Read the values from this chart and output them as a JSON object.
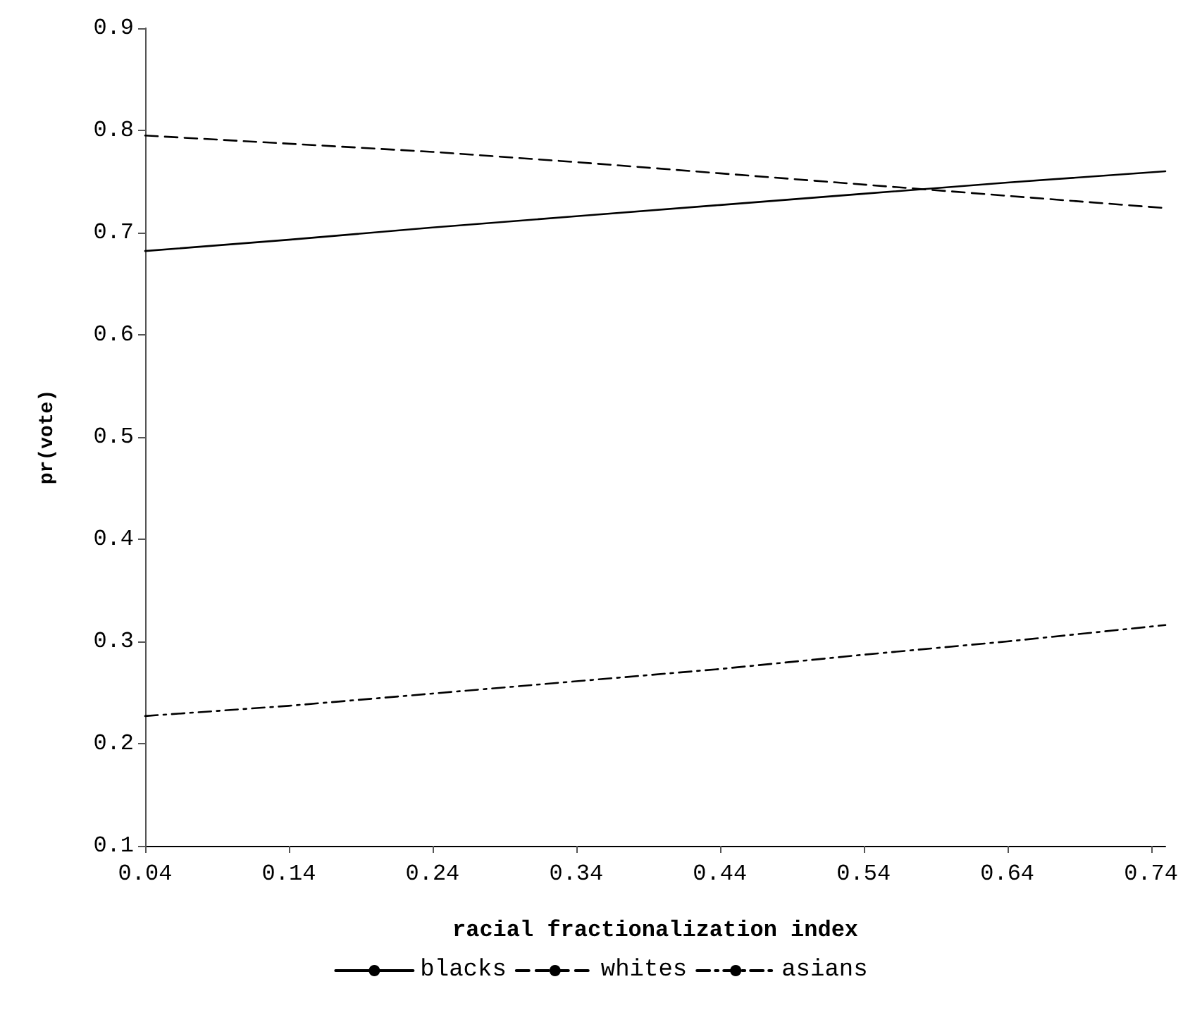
{
  "chart_data": {
    "type": "line",
    "xlabel": "racial fractionalization index",
    "ylabel": "pr(vote)",
    "x": [
      0.04,
      0.14,
      0.24,
      0.34,
      0.44,
      0.54,
      0.64,
      0.75
    ],
    "series": [
      {
        "name": "blacks",
        "color": "#000000",
        "line_style": "solid",
        "values": [
          0.682,
          0.693,
          0.705,
          0.716,
          0.727,
          0.738,
          0.749,
          0.76
        ]
      },
      {
        "name": "whites",
        "color": "#000000",
        "line_style": "dashed",
        "values": [
          0.795,
          0.787,
          0.779,
          0.769,
          0.758,
          0.747,
          0.736,
          0.724
        ]
      },
      {
        "name": "asians",
        "color": "#000000",
        "line_style": "dotted",
        "values": [
          0.227,
          0.237,
          0.249,
          0.261,
          0.273,
          0.287,
          0.3,
          0.316
        ]
      }
    ],
    "xlim": [
      0.04,
      0.75
    ],
    "xticks": [
      0.04,
      0.14,
      0.24,
      0.34,
      0.44,
      0.54,
      0.64,
      0.74
    ],
    "ylim": [
      0.1,
      0.9
    ],
    "yticks": [
      0.1,
      0.2,
      0.3,
      0.4,
      0.5,
      0.6,
      0.7,
      0.8,
      0.9
    ],
    "grid": false,
    "legend": "bottom",
    "marker": "none"
  }
}
